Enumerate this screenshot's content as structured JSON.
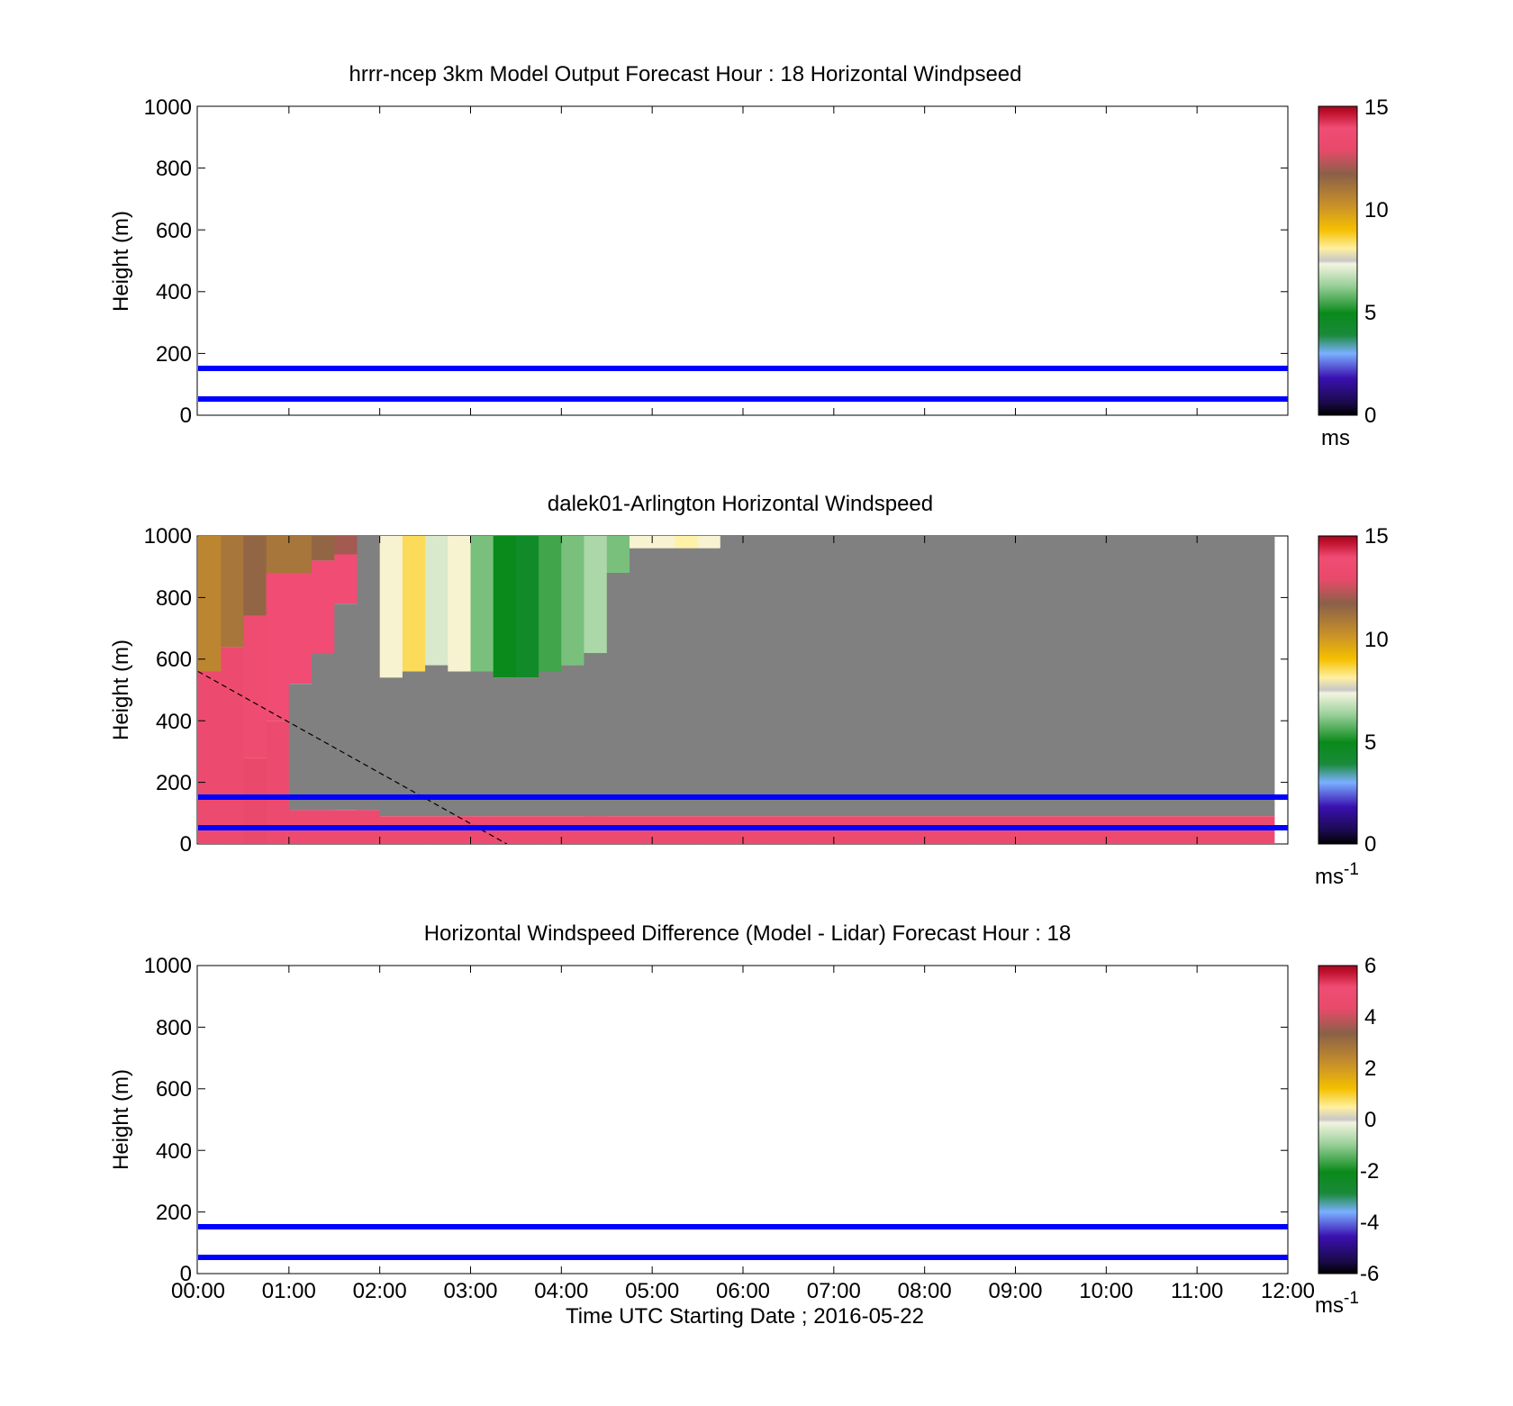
{
  "figure": {
    "xlabel": "Time UTC  Starting Date ; 2016-05-22",
    "x_ticks": [
      "00:00",
      "01:00",
      "02:00",
      "03:00",
      "04:00",
      "05:00",
      "06:00",
      "07:00",
      "08:00",
      "09:00",
      "10:00",
      "11:00",
      "12:00"
    ]
  },
  "chart_data": [
    {
      "type": "heatmap",
      "title": "hrrr-ncep 3km Model Output   Forecast Hour : 18 Horizontal Windpseed",
      "ylabel": "Height (m)",
      "ylim": [
        0,
        1000
      ],
      "y_ticks": [
        "0",
        "200",
        "400",
        "600",
        "800",
        "1000"
      ],
      "xlim_hours": [
        0,
        12
      ],
      "reference_lines_m": [
        150,
        50
      ],
      "reference_line_color": "#0000ff",
      "colorbar": {
        "ticks": [
          "0",
          "5",
          "10",
          "15"
        ],
        "range": [
          0,
          15
        ],
        "unit": "ms"
      },
      "cells": []
    },
    {
      "type": "heatmap",
      "title": "dalek01-Arlington  Horizontal Windspeed",
      "ylabel": "Height (m)",
      "ylim": [
        0,
        1000
      ],
      "y_ticks": [
        "0",
        "200",
        "400",
        "600",
        "800",
        "1000"
      ],
      "xlim_hours": [
        0,
        12
      ],
      "reference_lines_m": [
        150,
        50
      ],
      "reference_line_color": "#0000ff",
      "mixing_height_line": {
        "from": [
          0.0,
          560
        ],
        "to": [
          3.4,
          0
        ],
        "style": "dashed"
      },
      "colorbar": {
        "ticks": [
          "0",
          "5",
          "10",
          "15"
        ],
        "range": [
          0,
          15
        ],
        "unit": "ms",
        "unit_sup": "-1"
      },
      "no_data_color": "#808080",
      "data_extent_hours": 11.85,
      "columns": [
        {
          "t": 0.0,
          "segments": [
            [
              560,
              1000,
              10.5
            ],
            [
              0,
              560,
              13.5
            ]
          ]
        },
        {
          "t": 0.25,
          "segments": [
            [
              640,
              1000,
              11.0
            ],
            [
              0,
              640,
              13.5
            ]
          ]
        },
        {
          "t": 0.5,
          "segments": [
            [
              740,
              1000,
              11.5
            ],
            [
              280,
              740,
              13.8
            ],
            [
              0,
              280,
              13.0
            ]
          ]
        },
        {
          "t": 0.75,
          "segments": [
            [
              880,
              1000,
              11.0
            ],
            [
              400,
              880,
              14.0
            ],
            [
              0,
              400,
              13.5
            ]
          ]
        },
        {
          "t": 1.0,
          "segments": [
            [
              880,
              1000,
              11.0
            ],
            [
              520,
              880,
              14.0
            ],
            [
              110,
              520,
              -1
            ],
            [
              0,
              110,
              13.5
            ]
          ]
        },
        {
          "t": 1.25,
          "segments": [
            [
              920,
              1000,
              11.5
            ],
            [
              620,
              920,
              14.0
            ],
            [
              110,
              620,
              -1
            ],
            [
              0,
              110,
              13.5
            ]
          ]
        },
        {
          "t": 1.5,
          "segments": [
            [
              940,
              1000,
              12.0
            ],
            [
              780,
              940,
              14.0
            ],
            [
              110,
              780,
              -1
            ],
            [
              0,
              110,
              13.5
            ]
          ]
        },
        {
          "t": 1.75,
          "segments": [
            [
              110,
              1000,
              -1
            ],
            [
              0,
              110,
              13.5
            ]
          ]
        },
        {
          "t": 2.0,
          "segments": [
            [
              540,
              1000,
              7.5
            ],
            [
              90,
              540,
              -1
            ],
            [
              0,
              90,
              13.5
            ]
          ]
        },
        {
          "t": 2.25,
          "segments": [
            [
              560,
              1000,
              8.5
            ],
            [
              90,
              560,
              -1
            ],
            [
              0,
              90,
              13.5
            ]
          ]
        },
        {
          "t": 2.5,
          "segments": [
            [
              580,
              1000,
              7.0
            ],
            [
              90,
              580,
              -1
            ],
            [
              0,
              90,
              13.5
            ]
          ]
        },
        {
          "t": 2.75,
          "segments": [
            [
              560,
              1000,
              7.5
            ],
            [
              90,
              560,
              -1
            ],
            [
              0,
              90,
              13.5
            ]
          ]
        },
        {
          "t": 3.0,
          "segments": [
            [
              560,
              1000,
              6.0
            ],
            [
              90,
              560,
              -1
            ],
            [
              0,
              90,
              13.5
            ]
          ]
        },
        {
          "t": 3.25,
          "segments": [
            [
              540,
              1000,
              5.0
            ],
            [
              90,
              540,
              -1
            ],
            [
              0,
              90,
              13.5
            ]
          ]
        },
        {
          "t": 3.5,
          "segments": [
            [
              540,
              1000,
              4.5
            ],
            [
              90,
              540,
              -1
            ],
            [
              0,
              90,
              13.5
            ]
          ]
        },
        {
          "t": 3.75,
          "segments": [
            [
              560,
              1000,
              5.5
            ],
            [
              90,
              560,
              -1
            ],
            [
              0,
              90,
              13.5
            ]
          ]
        },
        {
          "t": 4.0,
          "segments": [
            [
              580,
              1000,
              6.0
            ],
            [
              90,
              580,
              -1
            ],
            [
              0,
              90,
              13.5
            ]
          ]
        },
        {
          "t": 4.25,
          "segments": [
            [
              620,
              1000,
              6.5
            ],
            [
              90,
              620,
              -1
            ],
            [
              0,
              90,
              13.5
            ]
          ]
        },
        {
          "t": 4.5,
          "segments": [
            [
              880,
              1000,
              6.0
            ],
            [
              90,
              880,
              -1
            ],
            [
              0,
              90,
              13.5
            ]
          ]
        },
        {
          "t": 4.75,
          "segments": [
            [
              960,
              1000,
              7.5
            ],
            [
              90,
              960,
              -1
            ],
            [
              0,
              90,
              13.5
            ]
          ]
        },
        {
          "t": 5.0,
          "segments": [
            [
              960,
              1000,
              7.5
            ],
            [
              90,
              960,
              -1
            ],
            [
              0,
              90,
              13.5
            ]
          ]
        },
        {
          "t": 5.25,
          "segments": [
            [
              960,
              1000,
              8.0
            ],
            [
              90,
              960,
              -1
            ],
            [
              0,
              90,
              13.5
            ]
          ]
        },
        {
          "t": 5.5,
          "segments": [
            [
              960,
              1000,
              7.5
            ],
            [
              90,
              960,
              -1
            ],
            [
              0,
              90,
              13.5
            ]
          ]
        },
        {
          "t": 5.75,
          "segments": [
            [
              90,
              1000,
              -1
            ],
            [
              0,
              90,
              13.5
            ]
          ]
        },
        {
          "t": 6.0,
          "segments": [
            [
              90,
              1000,
              -1
            ],
            [
              0,
              90,
              13.5
            ]
          ]
        },
        {
          "t": 6.25,
          "segments": [
            [
              90,
              1000,
              -1
            ],
            [
              0,
              90,
              13.5
            ]
          ]
        },
        {
          "t": 6.5,
          "segments": [
            [
              90,
              1000,
              -1
            ],
            [
              0,
              90,
              13.5
            ]
          ]
        },
        {
          "t": 6.75,
          "segments": [
            [
              90,
              1000,
              -1
            ],
            [
              0,
              90,
              13.5
            ]
          ]
        },
        {
          "t": 7.0,
          "segments": [
            [
              90,
              1000,
              -1
            ],
            [
              0,
              90,
              13.5
            ]
          ]
        },
        {
          "t": 7.25,
          "segments": [
            [
              90,
              1000,
              -1
            ],
            [
              0,
              90,
              13.5
            ]
          ]
        },
        {
          "t": 7.5,
          "segments": [
            [
              90,
              1000,
              -1
            ],
            [
              0,
              90,
              13.5
            ]
          ]
        },
        {
          "t": 7.75,
          "segments": [
            [
              90,
              1000,
              -1
            ],
            [
              0,
              90,
              13.5
            ]
          ]
        },
        {
          "t": 8.0,
          "segments": [
            [
              90,
              1000,
              -1
            ],
            [
              0,
              90,
              13.5
            ]
          ]
        },
        {
          "t": 8.25,
          "segments": [
            [
              90,
              1000,
              -1
            ],
            [
              0,
              90,
              13.5
            ]
          ]
        },
        {
          "t": 8.5,
          "segments": [
            [
              90,
              1000,
              -1
            ],
            [
              0,
              90,
              13.5
            ]
          ]
        },
        {
          "t": 8.75,
          "segments": [
            [
              90,
              1000,
              -1
            ],
            [
              0,
              90,
              13.5
            ]
          ]
        },
        {
          "t": 9.0,
          "segments": [
            [
              90,
              1000,
              -1
            ],
            [
              0,
              90,
              13.5
            ]
          ]
        },
        {
          "t": 9.25,
          "segments": [
            [
              90,
              1000,
              -1
            ],
            [
              0,
              90,
              13.5
            ]
          ]
        },
        {
          "t": 9.5,
          "segments": [
            [
              90,
              1000,
              -1
            ],
            [
              0,
              90,
              13.5
            ]
          ]
        },
        {
          "t": 9.75,
          "segments": [
            [
              90,
              1000,
              -1
            ],
            [
              0,
              90,
              13.5
            ]
          ]
        },
        {
          "t": 10.0,
          "segments": [
            [
              90,
              1000,
              -1
            ],
            [
              0,
              90,
              13.5
            ]
          ]
        },
        {
          "t": 10.25,
          "segments": [
            [
              90,
              1000,
              -1
            ],
            [
              0,
              90,
              13.5
            ]
          ]
        },
        {
          "t": 10.5,
          "segments": [
            [
              90,
              1000,
              -1
            ],
            [
              0,
              90,
              13.5
            ]
          ]
        },
        {
          "t": 10.75,
          "segments": [
            [
              90,
              1000,
              -1
            ],
            [
              0,
              90,
              13.5
            ]
          ]
        },
        {
          "t": 11.0,
          "segments": [
            [
              90,
              1000,
              -1
            ],
            [
              0,
              90,
              13.5
            ]
          ]
        },
        {
          "t": 11.25,
          "segments": [
            [
              90,
              1000,
              -1
            ],
            [
              0,
              90,
              13.5
            ]
          ]
        },
        {
          "t": 11.5,
          "segments": [
            [
              90,
              1000,
              -1
            ],
            [
              0,
              90,
              13.5
            ]
          ]
        }
      ]
    },
    {
      "type": "heatmap",
      "title": "Horizontal Windspeed Difference (Model - Lidar) Forecast Hour : 18",
      "ylabel": "Height (m)",
      "ylim": [
        0,
        1000
      ],
      "y_ticks": [
        "0",
        "200",
        "400",
        "600",
        "800",
        "1000"
      ],
      "xlim_hours": [
        0,
        12
      ],
      "reference_lines_m": [
        150,
        50
      ],
      "reference_line_color": "#0000ff",
      "colorbar": {
        "ticks": [
          "-6",
          "-4",
          "-2",
          "0",
          "2",
          "4",
          "6"
        ],
        "range": [
          -6,
          6
        ],
        "unit": "ms",
        "unit_sup": "-1"
      },
      "cells": []
    }
  ]
}
